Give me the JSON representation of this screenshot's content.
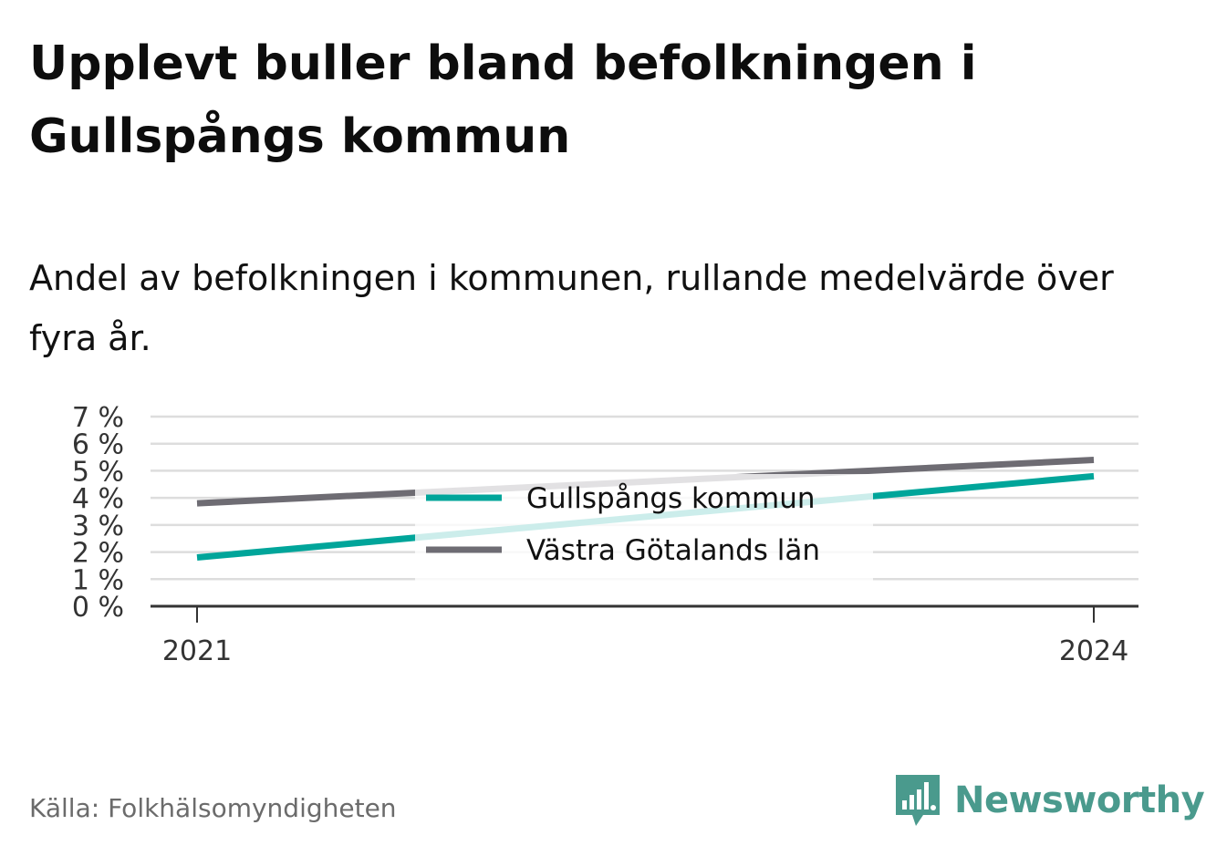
{
  "title": "Upplevt buller bland befolkningen i Gullspångs kommun",
  "subtitle": "Andel av befolkningen i kommunen, rullande medelvärde över fyra år.",
  "source": "Källa: Folkhälsomyndigheten",
  "logo": {
    "text": "Newsworthy",
    "icon": "newsworthy-chart-bubble-icon",
    "color": "#4a9a8d"
  },
  "chart_data": {
    "type": "line",
    "title": "Upplevt buller bland befolkningen i Gullspångs kommun",
    "subtitle": "Andel av befolkningen i kommunen, rullande medelvärde över fyra år.",
    "x": [
      2021,
      2024
    ],
    "x_ticks": [
      "2021",
      "2024"
    ],
    "y_ticks": [
      "0 %",
      "1 %",
      "2 %",
      "3 %",
      "4 %",
      "5 %",
      "6 %",
      "7 %"
    ],
    "ylim": [
      0,
      7
    ],
    "ylabel": "",
    "xlabel": "",
    "grid": true,
    "legend_position": "center",
    "series": [
      {
        "name": "Gullspångs kommun",
        "values": [
          1.8,
          4.8
        ],
        "color": "#00a59a"
      },
      {
        "name": "Västra Götalands län",
        "values": [
          3.8,
          5.4
        ],
        "color": "#6e6c73"
      }
    ]
  }
}
